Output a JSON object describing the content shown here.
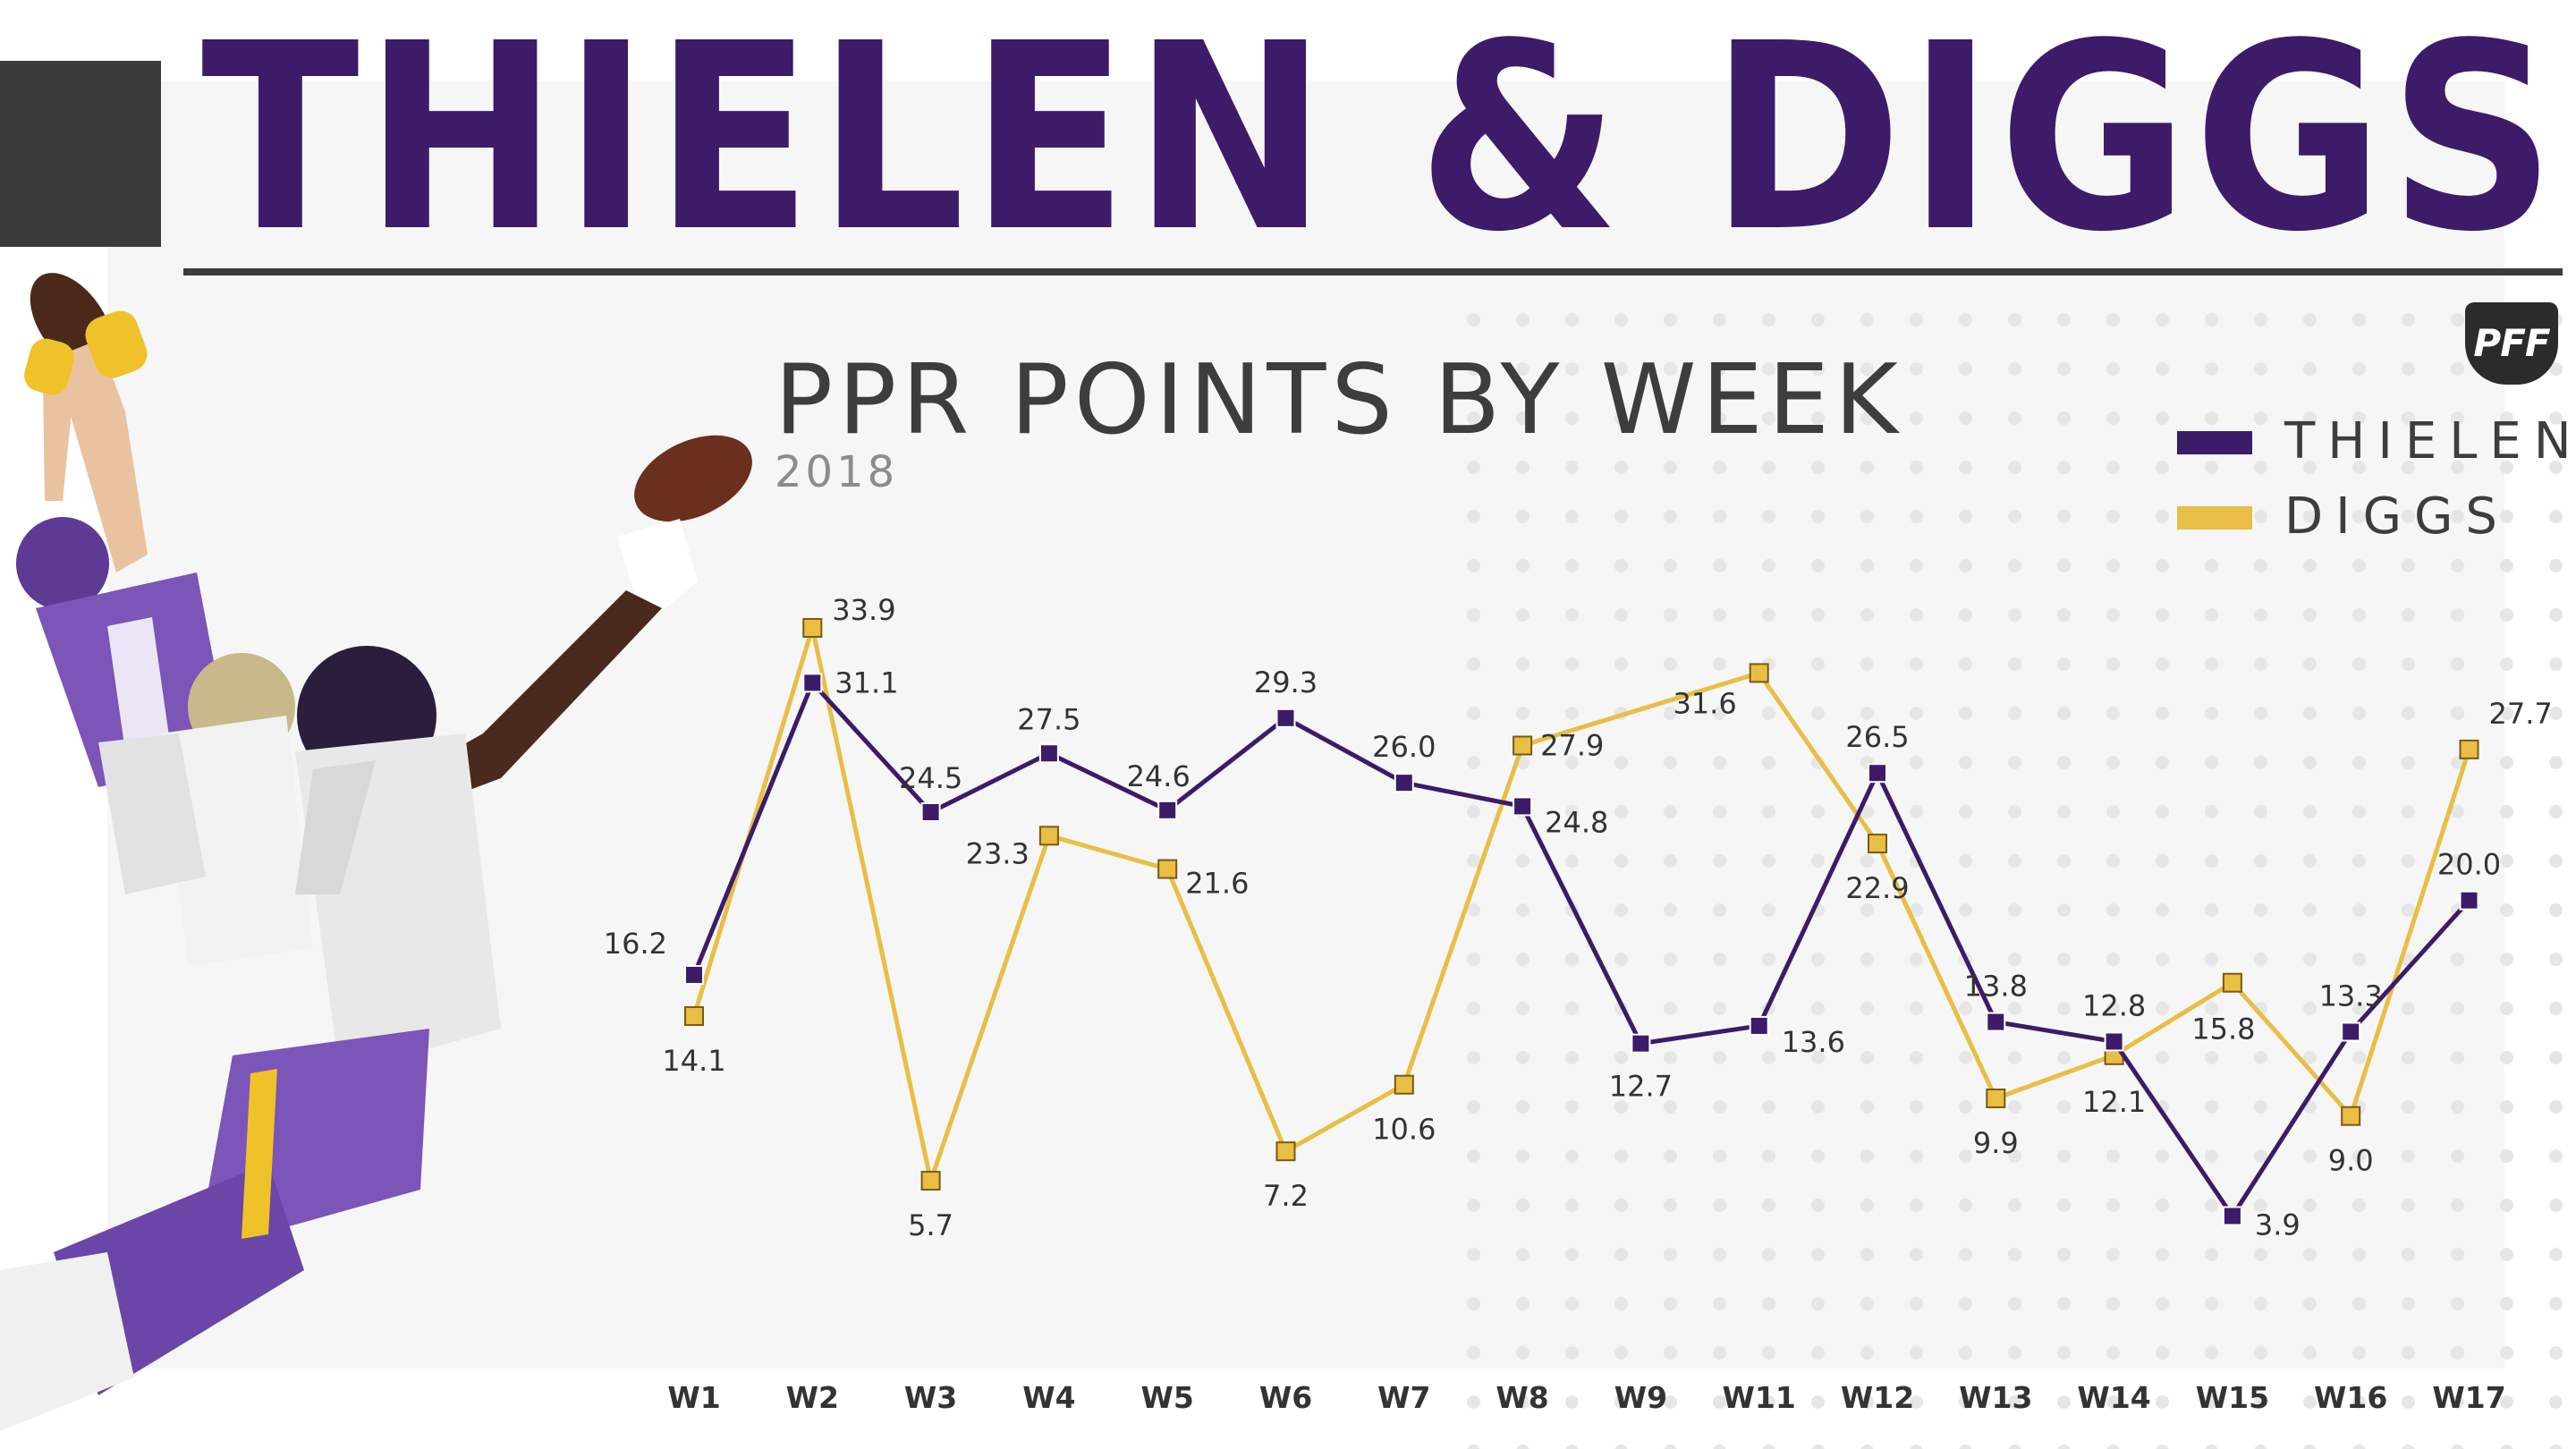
{
  "header": {
    "title": "THIELEN & DIGGS",
    "subtitle": "PPR POINTS BY WEEK",
    "year": "2018",
    "logo_text": "PFF"
  },
  "colors": {
    "thielen": "#3c1b68",
    "diggs": "#e8be45",
    "title": "#3c1b68",
    "text": "#333333"
  },
  "legend": {
    "placement": "top-right",
    "items": [
      {
        "label": "THIELEN",
        "color": "#3c1b68"
      },
      {
        "label": "DIGGS",
        "color": "#e8be45"
      }
    ]
  },
  "chart_data": {
    "type": "line",
    "title": "PPR POINTS BY WEEK",
    "subtitle": "2018",
    "xlabel": "",
    "ylabel": "",
    "categories": [
      "W1",
      "W2",
      "W3",
      "W4",
      "W5",
      "W6",
      "W7",
      "W8",
      "W9",
      "W11",
      "W12",
      "W13",
      "W14",
      "W15",
      "W16",
      "W17"
    ],
    "ylim": [
      0,
      36
    ],
    "grid": false,
    "marker": "square",
    "series": [
      {
        "name": "THIELEN",
        "color": "#3c1b68",
        "values": [
          16.2,
          31.1,
          24.5,
          27.5,
          24.6,
          29.3,
          26.0,
          24.8,
          12.7,
          13.6,
          26.5,
          13.8,
          12.8,
          3.9,
          13.3,
          20.0
        ],
        "labels": [
          "16.2",
          "31.1",
          "24.5",
          "27.5",
          "24.6",
          "29.3",
          "26.0",
          "24.8",
          "12.7",
          "13.6",
          "26.5",
          "13.8",
          "12.8",
          "3.9",
          "13.3",
          "20.0"
        ]
      },
      {
        "name": "DIGGS",
        "color": "#e8be45",
        "values": [
          14.1,
          33.9,
          5.7,
          23.3,
          21.6,
          7.2,
          10.6,
          27.9,
          null,
          31.6,
          22.9,
          9.9,
          12.1,
          15.8,
          9.0,
          27.7
        ],
        "labels": [
          "14.1",
          "33.9",
          "5.7",
          "23.3",
          "21.6",
          "7.2",
          "10.6",
          "27.9",
          "",
          "31.6",
          "22.9",
          "9.9",
          "12.1",
          "15.8",
          "9.0",
          "27.7"
        ]
      }
    ]
  }
}
